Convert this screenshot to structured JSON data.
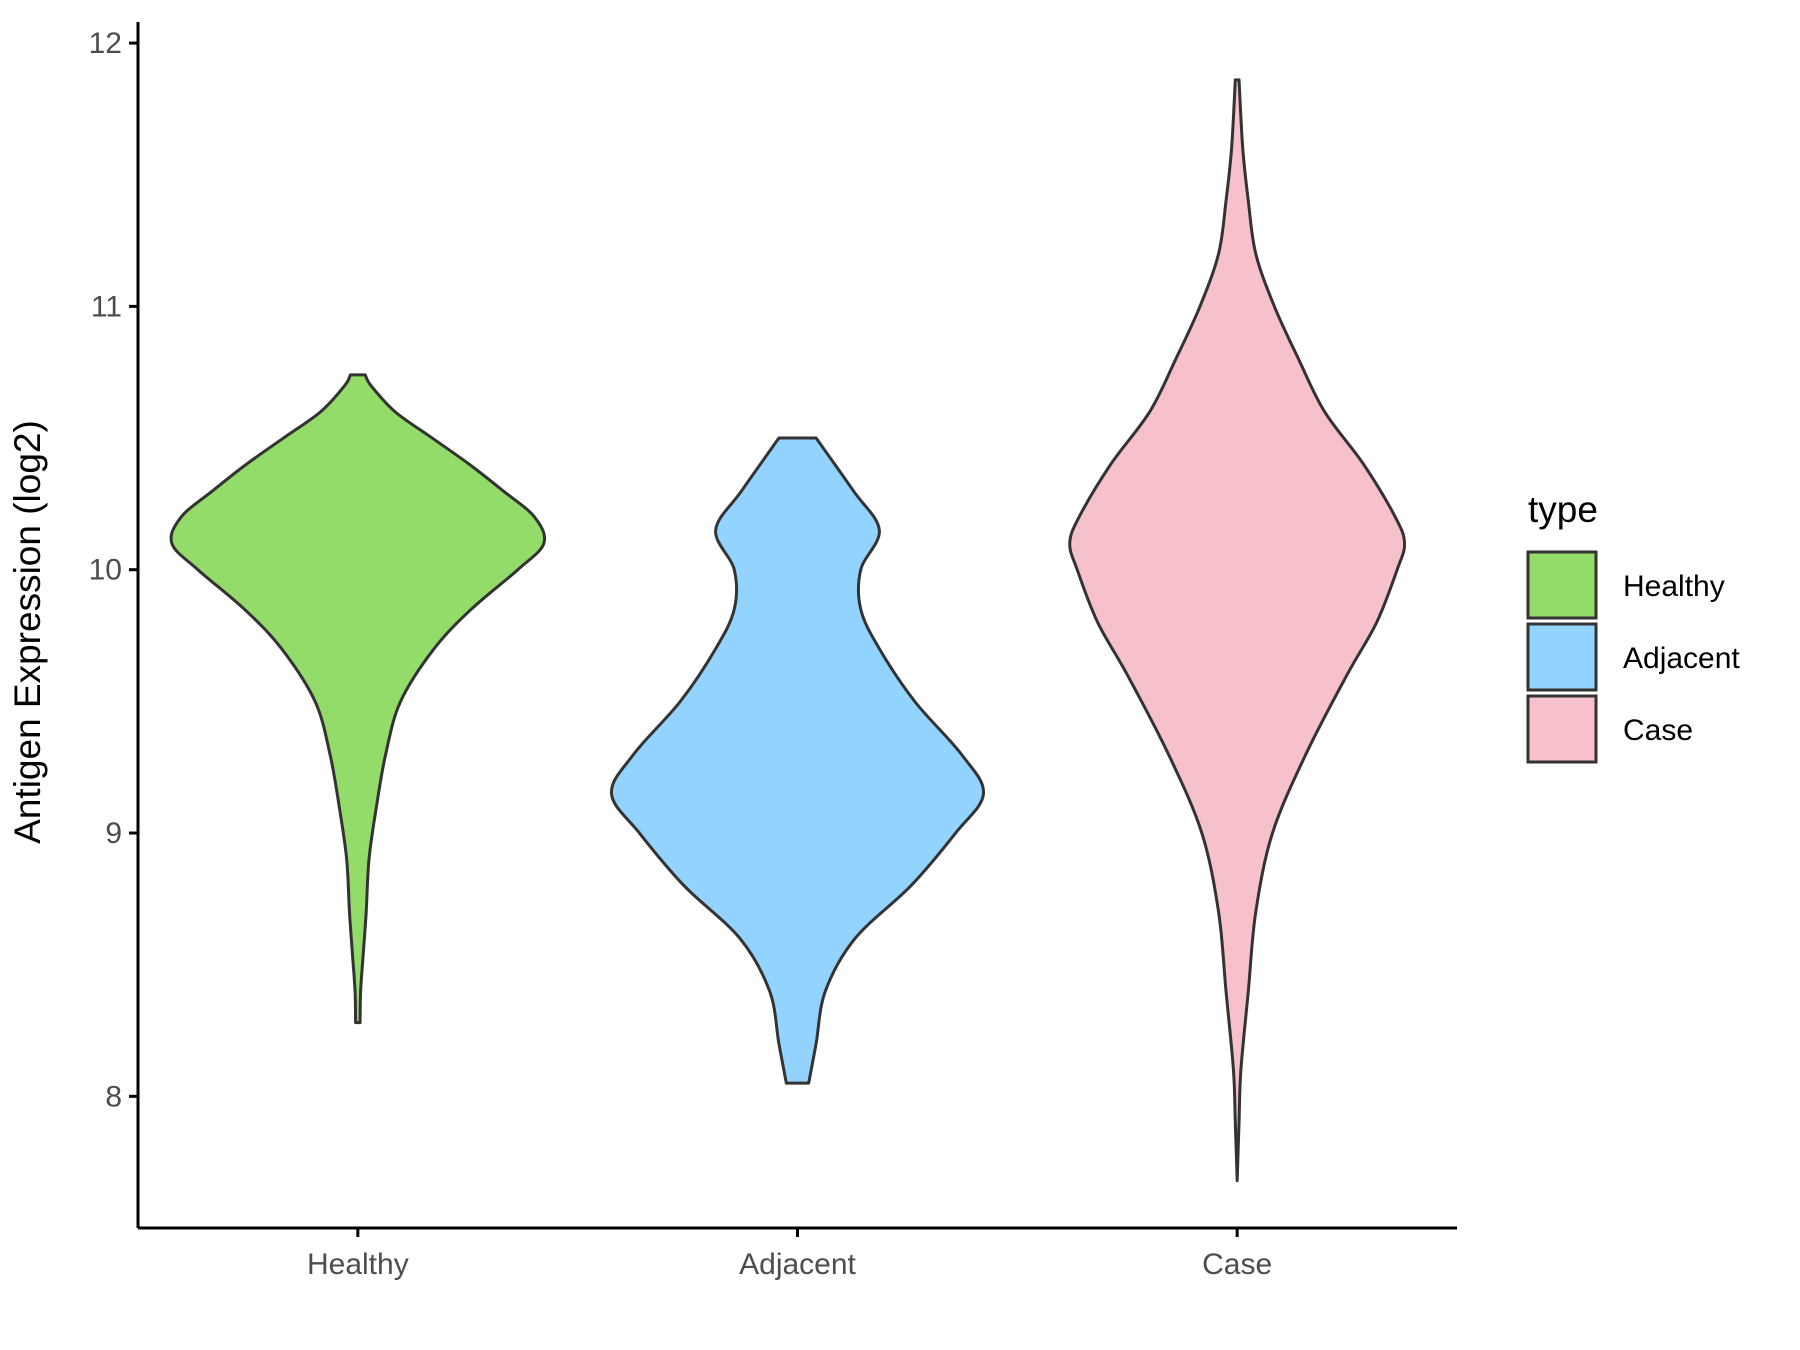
{
  "chart_data": {
    "type": "violin",
    "title": "",
    "xlabel": "",
    "ylabel": "Antigen Expression (log2)",
    "categories": [
      "Healthy",
      "Adjacent",
      "Case"
    ],
    "ylim": [
      7.5,
      12.08
    ],
    "yticks": [
      8,
      9,
      10,
      11,
      12
    ],
    "grid": false,
    "legend": {
      "title": "type",
      "position": "right",
      "entries": [
        "Healthy",
        "Adjacent",
        "Case"
      ]
    },
    "colors": {
      "Healthy": "#93DC6A",
      "Adjacent": "#93D3FF",
      "Case": "#F7C1CC",
      "outline": "#333333"
    },
    "series": [
      {
        "name": "Healthy",
        "min": 8.28,
        "max": 10.74,
        "density": [
          [
            8.28,
            0.012
          ],
          [
            8.4,
            0.015
          ],
          [
            8.55,
            0.03
          ],
          [
            8.7,
            0.045
          ],
          [
            8.9,
            0.06
          ],
          [
            9.1,
            0.1
          ],
          [
            9.3,
            0.15
          ],
          [
            9.5,
            0.23
          ],
          [
            9.7,
            0.41
          ],
          [
            9.85,
            0.61
          ],
          [
            10.0,
            0.86
          ],
          [
            10.1,
            1.0
          ],
          [
            10.2,
            0.95
          ],
          [
            10.3,
            0.78
          ],
          [
            10.4,
            0.6
          ],
          [
            10.5,
            0.4
          ],
          [
            10.6,
            0.2
          ],
          [
            10.7,
            0.07
          ],
          [
            10.74,
            0.04
          ]
        ]
      },
      {
        "name": "Adjacent",
        "min": 8.05,
        "max": 10.5,
        "density": [
          [
            8.05,
            0.06
          ],
          [
            8.2,
            0.1
          ],
          [
            8.4,
            0.15
          ],
          [
            8.6,
            0.31
          ],
          [
            8.8,
            0.61
          ],
          [
            9.0,
            0.85
          ],
          [
            9.15,
            1.0
          ],
          [
            9.3,
            0.88
          ],
          [
            9.5,
            0.63
          ],
          [
            9.7,
            0.44
          ],
          [
            9.85,
            0.34
          ],
          [
            10.0,
            0.34
          ],
          [
            10.15,
            0.44
          ],
          [
            10.3,
            0.3
          ],
          [
            10.5,
            0.1
          ]
        ]
      },
      {
        "name": "Case",
        "min": 7.68,
        "max": 11.86,
        "density": [
          [
            7.68,
            0.0
          ],
          [
            7.9,
            0.01
          ],
          [
            8.1,
            0.02
          ],
          [
            8.4,
            0.06
          ],
          [
            8.7,
            0.1
          ],
          [
            9.0,
            0.19
          ],
          [
            9.3,
            0.37
          ],
          [
            9.6,
            0.59
          ],
          [
            9.8,
            0.75
          ],
          [
            10.0,
            0.86
          ],
          [
            10.1,
            0.9
          ],
          [
            10.2,
            0.85
          ],
          [
            10.4,
            0.68
          ],
          [
            10.6,
            0.47
          ],
          [
            10.8,
            0.33
          ],
          [
            11.0,
            0.2
          ],
          [
            11.2,
            0.1
          ],
          [
            11.4,
            0.06
          ],
          [
            11.6,
            0.03
          ],
          [
            11.86,
            0.01
          ]
        ]
      }
    ]
  }
}
